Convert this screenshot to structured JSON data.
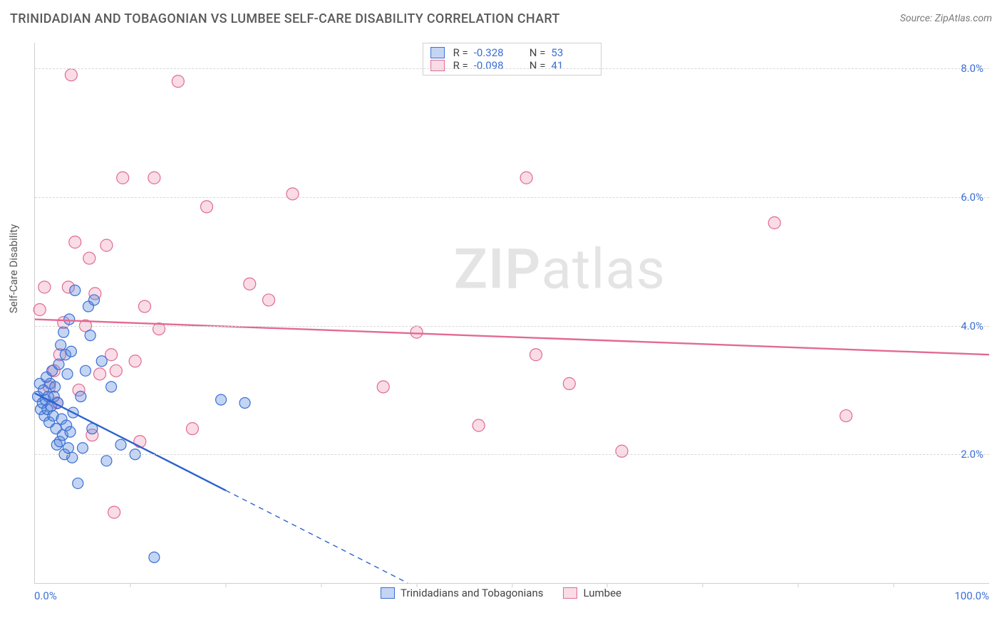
{
  "header": {
    "title": "TRINIDADIAN AND TOBAGONIAN VS LUMBEE SELF-CARE DISABILITY CORRELATION CHART",
    "source": "Source: ZipAtlas.com"
  },
  "axes": {
    "y_label": "Self-Care Disability",
    "x_min": 0,
    "x_max": 100,
    "x_label_min": "0.0%",
    "x_label_max": "100.0%",
    "y_min": 0,
    "y_max": 8.4,
    "y_ticks": [
      2.0,
      4.0,
      6.0,
      8.0
    ],
    "y_tick_labels": [
      "2.0%",
      "4.0%",
      "6.0%",
      "8.0%"
    ],
    "x_minor_ticks": [
      10,
      20,
      30,
      40,
      50,
      60,
      70,
      80,
      90
    ],
    "grid_color": "#d8d8d8",
    "border_color": "#cfcfcf",
    "label_color": "#5a5a5a",
    "tick_color": "#3b6fd4",
    "label_fontsize": 15,
    "title_fontsize": 18
  },
  "watermark": {
    "text_bold": "ZIP",
    "text_rest": "atlas"
  },
  "legend_top": {
    "rows": [
      {
        "swatch": "blue",
        "r_label": "R =",
        "r_value": "-0.328",
        "n_label": "N =",
        "n_value": "53"
      },
      {
        "swatch": "pink",
        "r_label": "R =",
        "r_value": "-0.098",
        "n_label": "N =",
        "n_value": "41"
      }
    ]
  },
  "legend_bottom": {
    "items": [
      {
        "swatch": "blue",
        "label": "Trinidadians and Tobagonians"
      },
      {
        "swatch": "pink",
        "label": "Lumbee"
      }
    ]
  },
  "series": {
    "blue": {
      "color_fill": "rgba(86,136,222,0.35)",
      "color_stroke": "#3b6fd4",
      "marker_radius": 7.5,
      "line": {
        "y_at_x0": 2.95,
        "y_at_x100": -4.6,
        "solid_until_x": 20
      },
      "points": [
        [
          0.3,
          2.9
        ],
        [
          0.5,
          3.1
        ],
        [
          0.6,
          2.7
        ],
        [
          0.8,
          2.8
        ],
        [
          0.9,
          3.0
        ],
        [
          1.0,
          2.6
        ],
        [
          1.1,
          2.85
        ],
        [
          1.2,
          3.2
        ],
        [
          1.3,
          2.7
        ],
        [
          1.4,
          2.9
        ],
        [
          1.5,
          2.5
        ],
        [
          1.6,
          3.1
        ],
        [
          1.7,
          2.75
        ],
        [
          1.8,
          3.3
        ],
        [
          1.9,
          2.6
        ],
        [
          2.0,
          2.9
        ],
        [
          2.1,
          3.05
        ],
        [
          2.2,
          2.4
        ],
        [
          2.3,
          2.15
        ],
        [
          2.4,
          2.8
        ],
        [
          2.5,
          3.4
        ],
        [
          2.6,
          2.2
        ],
        [
          2.7,
          3.7
        ],
        [
          2.8,
          2.55
        ],
        [
          2.9,
          2.3
        ],
        [
          3.0,
          3.9
        ],
        [
          3.1,
          2.0
        ],
        [
          3.2,
          3.55
        ],
        [
          3.3,
          2.45
        ],
        [
          3.4,
          3.25
        ],
        [
          3.5,
          2.1
        ],
        [
          3.6,
          4.1
        ],
        [
          3.7,
          2.35
        ],
        [
          3.8,
          3.6
        ],
        [
          3.9,
          1.95
        ],
        [
          4.0,
          2.65
        ],
        [
          4.2,
          4.55
        ],
        [
          4.5,
          1.55
        ],
        [
          4.8,
          2.9
        ],
        [
          5.0,
          2.1
        ],
        [
          5.3,
          3.3
        ],
        [
          5.6,
          4.3
        ],
        [
          5.8,
          3.85
        ],
        [
          6.0,
          2.4
        ],
        [
          7.0,
          3.45
        ],
        [
          7.5,
          1.9
        ],
        [
          8.0,
          3.05
        ],
        [
          9.0,
          2.15
        ],
        [
          10.5,
          2.0
        ],
        [
          12.5,
          0.4
        ],
        [
          19.5,
          2.85
        ],
        [
          22.0,
          2.8
        ],
        [
          6.2,
          4.4
        ]
      ]
    },
    "pink": {
      "color_fill": "rgba(235,130,164,0.28)",
      "color_stroke": "#e26a94",
      "marker_radius": 8.5,
      "line": {
        "y_at_x0": 4.1,
        "y_at_x100": 3.55
      },
      "points": [
        [
          0.5,
          4.25
        ],
        [
          1.0,
          4.6
        ],
        [
          1.5,
          3.05
        ],
        [
          2.0,
          3.3
        ],
        [
          2.3,
          2.8
        ],
        [
          2.6,
          3.55
        ],
        [
          3.0,
          4.05
        ],
        [
          3.5,
          4.6
        ],
        [
          3.8,
          7.9
        ],
        [
          4.2,
          5.3
        ],
        [
          4.6,
          3.0
        ],
        [
          5.3,
          4.0
        ],
        [
          5.7,
          5.05
        ],
        [
          6.0,
          2.3
        ],
        [
          6.3,
          4.5
        ],
        [
          6.8,
          3.25
        ],
        [
          7.5,
          5.25
        ],
        [
          8.0,
          3.55
        ],
        [
          8.3,
          1.1
        ],
        [
          8.5,
          3.3
        ],
        [
          9.2,
          6.3
        ],
        [
          10.5,
          3.45
        ],
        [
          11.0,
          2.2
        ],
        [
          11.5,
          4.3
        ],
        [
          12.5,
          6.3
        ],
        [
          13.0,
          3.95
        ],
        [
          15.0,
          7.8
        ],
        [
          16.5,
          2.4
        ],
        [
          18.0,
          5.85
        ],
        [
          22.5,
          4.65
        ],
        [
          24.5,
          4.4
        ],
        [
          27.0,
          6.05
        ],
        [
          36.5,
          3.05
        ],
        [
          40.0,
          3.9
        ],
        [
          46.5,
          2.45
        ],
        [
          51.5,
          6.3
        ],
        [
          52.5,
          3.55
        ],
        [
          56.0,
          3.1
        ],
        [
          61.5,
          2.05
        ],
        [
          77.5,
          5.6
        ],
        [
          85.0,
          2.6
        ]
      ]
    }
  }
}
